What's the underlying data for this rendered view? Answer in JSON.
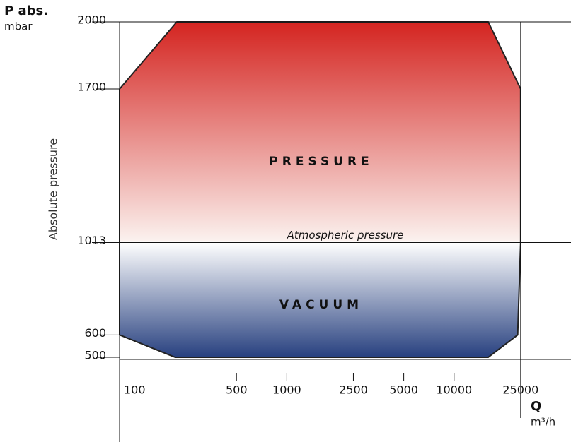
{
  "chart_data": {
    "type": "area",
    "y_label": "P abs.",
    "y_unit": "mbar",
    "y_axis_title": "Absolute pressure",
    "x_label": "Q",
    "x_unit": "m³/h",
    "x_log": true,
    "xlim": [
      100,
      50000
    ],
    "xticks": [
      100,
      500,
      1000,
      2500,
      5000,
      10000,
      25000
    ],
    "ylim": [
      500,
      2000
    ],
    "yticks": [
      500,
      600,
      1013,
      1700,
      2000
    ],
    "annotation": {
      "text": "Atmospheric pressure",
      "y": 1013
    },
    "regions": [
      {
        "name": "PRESSURE",
        "color": "#d42420"
      },
      {
        "name": "VACUUM",
        "color": "#27407f"
      }
    ],
    "series": [
      {
        "x": [
          100,
          220,
          16000,
          25000,
          25000,
          24000,
          16000,
          215,
          100
        ],
        "values": [
          1700,
          2000,
          2000,
          1700,
          1013,
          600,
          500,
          500,
          600
        ]
      }
    ]
  }
}
